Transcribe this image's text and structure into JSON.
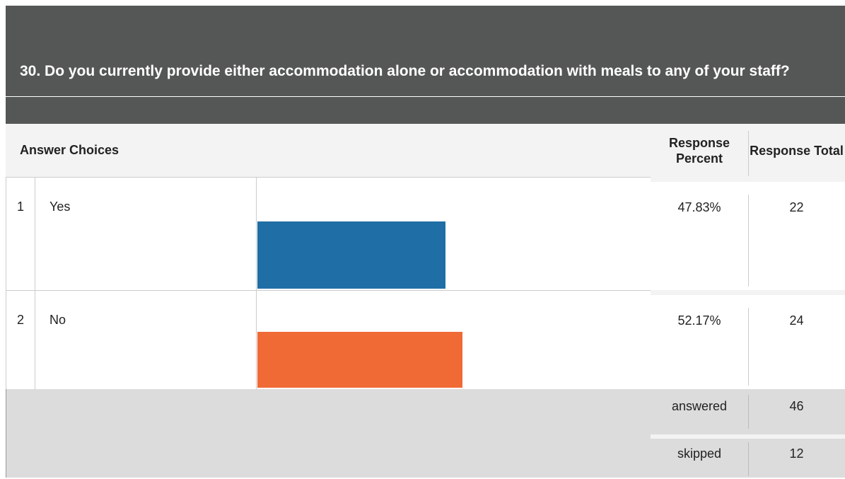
{
  "title": "30. Do you currently provide either accommodation alone or accommodation with meals to any of your staff?",
  "table": {
    "headers": [
      "Answer Choices",
      "Response Percent",
      "Response Total"
    ],
    "xlim": [
      0,
      100
    ],
    "rows": [
      {
        "index": "1",
        "label": "Yes",
        "percent": 47.83,
        "percent_label": "47.83%",
        "total": 22,
        "color": "#1f6fa6"
      },
      {
        "index": "2",
        "label": "No",
        "percent": 52.17,
        "percent_label": "52.17%",
        "total": 24,
        "color": "#f06a35"
      }
    ],
    "summary": [
      {
        "label": "answered",
        "value": 46
      },
      {
        "label": "skipped",
        "value": 12
      }
    ]
  }
}
